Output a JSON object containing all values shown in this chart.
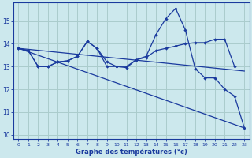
{
  "xlabel": "Graphe des températures (°c)",
  "background_color": "#cce8ed",
  "grid_color": "#aacccc",
  "line_color": "#1a3a9e",
  "xlim": [
    -0.5,
    23.5
  ],
  "ylim": [
    9.8,
    15.8
  ],
  "yticks": [
    10,
    11,
    12,
    13,
    14,
    15
  ],
  "xticks": [
    0,
    1,
    2,
    3,
    4,
    5,
    6,
    7,
    8,
    9,
    10,
    11,
    12,
    13,
    14,
    15,
    16,
    17,
    18,
    19,
    20,
    21,
    22,
    23
  ],
  "line1_x": [
    0,
    1,
    2,
    3,
    4,
    5,
    6,
    7,
    8,
    9,
    10,
    11,
    12,
    13,
    14,
    15,
    16,
    17,
    18,
    19,
    20,
    21,
    22
  ],
  "line1_y": [
    13.8,
    13.7,
    13.0,
    13.0,
    13.2,
    13.25,
    13.45,
    14.1,
    13.8,
    13.2,
    13.0,
    12.95,
    13.3,
    13.4,
    13.7,
    13.8,
    13.9,
    14.0,
    14.05,
    14.05,
    14.2,
    14.2,
    13.0
  ],
  "line2_x": [
    0,
    1,
    2,
    3,
    4,
    5,
    6,
    7,
    8,
    9,
    10,
    11,
    12,
    13,
    14,
    15,
    16,
    17,
    18,
    19,
    20,
    21,
    22,
    23
  ],
  "line2_y": [
    13.8,
    13.7,
    13.0,
    13.0,
    13.2,
    13.25,
    13.45,
    14.1,
    13.8,
    13.0,
    13.0,
    13.0,
    13.3,
    13.45,
    14.4,
    15.1,
    15.55,
    14.6,
    12.9,
    12.5,
    12.5,
    12.0,
    11.7,
    10.3
  ],
  "line3_x": [
    0,
    23
  ],
  "line3_y": [
    13.8,
    10.3
  ],
  "line4_x": [
    0,
    23
  ],
  "line4_y": [
    13.8,
    12.8
  ]
}
